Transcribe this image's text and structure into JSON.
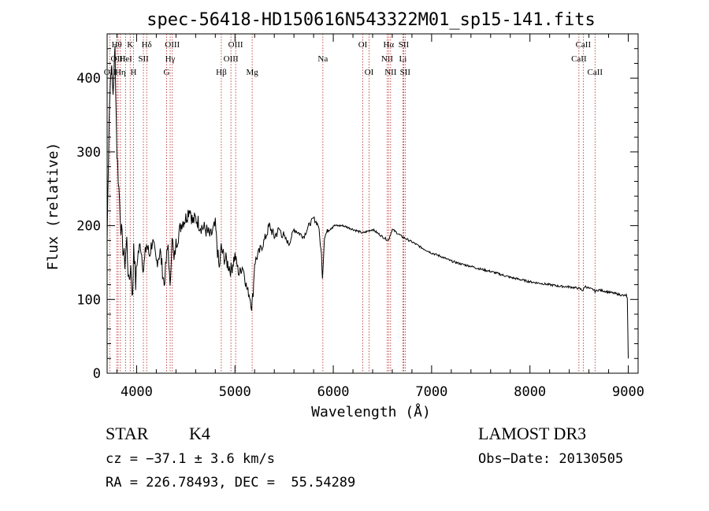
{
  "chart_data": {
    "type": "line",
    "title": "spec-56418-HD150616N543322M01_sp15-141.fits",
    "xlabel": "Wavelength (Å)",
    "ylabel": "Flux (relative)",
    "xlim": [
      3700,
      9100
    ],
    "ylim": [
      0,
      460
    ],
    "xticks": [
      4000,
      5000,
      6000,
      7000,
      8000,
      9000
    ],
    "yticks": [
      0,
      100,
      200,
      300,
      400
    ],
    "grid": false,
    "series": [
      {
        "name": "flux",
        "x": [
          3700,
          3720,
          3740,
          3760,
          3780,
          3800,
          3820,
          3840,
          3860,
          3880,
          3900,
          3920,
          3940,
          3960,
          3970,
          3990,
          4010,
          4040,
          4070,
          4100,
          4130,
          4160,
          4200,
          4240,
          4280,
          4300,
          4320,
          4340,
          4360,
          4380,
          4400,
          4430,
          4460,
          4500,
          4540,
          4570,
          4600,
          4650,
          4700,
          4750,
          4800,
          4840,
          4860,
          4880,
          4920,
          4960,
          5000,
          5040,
          5080,
          5120,
          5150,
          5170,
          5185,
          5200,
          5250,
          5300,
          5350,
          5400,
          5450,
          5500,
          5550,
          5600,
          5650,
          5700,
          5750,
          5800,
          5850,
          5880,
          5890,
          5896,
          5910,
          5950,
          6000,
          6100,
          6200,
          6300,
          6400,
          6500,
          6560,
          6600,
          6700,
          6800,
          6900,
          7000,
          7100,
          7200,
          7300,
          7400,
          7500,
          7600,
          7700,
          7800,
          7900,
          8000,
          8100,
          8200,
          8300,
          8400,
          8500,
          8540,
          8560,
          8600,
          8650,
          8662,
          8700,
          8800,
          8900,
          8960,
          8980,
          8990,
          9000
        ],
        "y": [
          180,
          350,
          420,
          380,
          440,
          300,
          250,
          200,
          170,
          150,
          180,
          120,
          145,
          100,
          180,
          120,
          160,
          175,
          140,
          175,
          160,
          180,
          150,
          165,
          120,
          150,
          175,
          110,
          190,
          150,
          175,
          190,
          205,
          210,
          225,
          205,
          210,
          200,
          195,
          185,
          200,
          140,
          170,
          160,
          150,
          140,
          160,
          135,
          145,
          115,
          105,
          90,
          110,
          150,
          165,
          180,
          200,
          185,
          195,
          185,
          175,
          195,
          190,
          185,
          200,
          210,
          200,
          160,
          130,
          145,
          185,
          195,
          200,
          200,
          195,
          190,
          195,
          185,
          180,
          195,
          185,
          178,
          170,
          163,
          158,
          152,
          148,
          145,
          141,
          138,
          134,
          130,
          127,
          124,
          122,
          120,
          118,
          117,
          115,
          112,
          118,
          115,
          113,
          111,
          113,
          110,
          107,
          105,
          106,
          100,
          20
        ]
      }
    ],
    "line_markers": [
      {
        "label": "OII",
        "wavelength": 3727,
        "row": 3
      },
      {
        "label": "Hθ",
        "wavelength": 3798,
        "row": 1
      },
      {
        "label": "OIII",
        "wavelength": 3812,
        "row": 2
      },
      {
        "label": "Hη",
        "wavelength": 3835,
        "row": 3
      },
      {
        "label": "HeI",
        "wavelength": 3889,
        "row": 2
      },
      {
        "label": "K",
        "wavelength": 3934,
        "row": 1
      },
      {
        "label": "H",
        "wavelength": 3968,
        "row": 3
      },
      {
        "label": "SII",
        "wavelength": 4069,
        "row": 2
      },
      {
        "label": "Hδ",
        "wavelength": 4102,
        "row": 1
      },
      {
        "label": "G",
        "wavelength": 4305,
        "row": 3
      },
      {
        "label": "Hγ",
        "wavelength": 4341,
        "row": 2
      },
      {
        "label": "OIII",
        "wavelength": 4363,
        "row": 1
      },
      {
        "label": "Hβ",
        "wavelength": 4861,
        "row": 3
      },
      {
        "label": "OIII",
        "wavelength": 4959,
        "row": 2
      },
      {
        "label": "OIII",
        "wavelength": 5007,
        "row": 1
      },
      {
        "label": "Mg",
        "wavelength": 5175,
        "row": 3
      },
      {
        "label": "Na",
        "wavelength": 5894,
        "row": 2
      },
      {
        "label": "OI",
        "wavelength": 6300,
        "row": 1
      },
      {
        "label": "OI",
        "wavelength": 6364,
        "row": 3
      },
      {
        "label": "NII",
        "wavelength": 6548,
        "row": 2
      },
      {
        "label": "Hα",
        "wavelength": 6563,
        "row": 1
      },
      {
        "label": "NII",
        "wavelength": 6583,
        "row": 3
      },
      {
        "label": "Li",
        "wavelength": 6708,
        "row": 2
      },
      {
        "label": "SII",
        "wavelength": 6716,
        "row": 1
      },
      {
        "label": "SII",
        "wavelength": 6731,
        "row": 3
      },
      {
        "label": "CaII",
        "wavelength": 8498,
        "row": 2
      },
      {
        "label": "CaII",
        "wavelength": 8542,
        "row": 1
      },
      {
        "label": "CaII",
        "wavelength": 8662,
        "row": 3
      }
    ],
    "colors": {
      "line": "#000000",
      "marker": "#b22222"
    }
  },
  "info": {
    "class": "STAR",
    "subclass": "K4",
    "survey": "LAMOST DR3",
    "cz": "cz = −37.1 ± 3.6 km/s",
    "obs_date": "Obs−Date: 20130505",
    "coords": "RA = 226.78493, DEC =  55.54289"
  }
}
